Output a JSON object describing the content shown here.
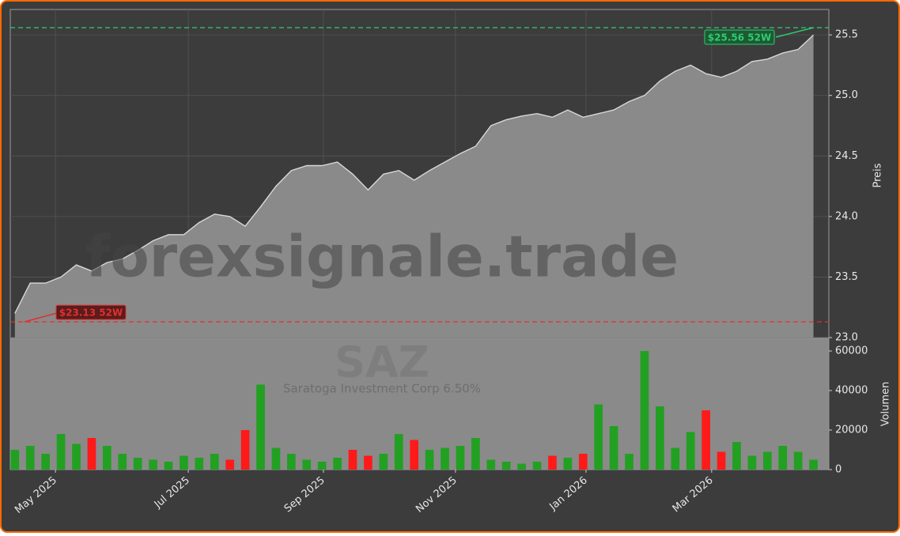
{
  "chart_data": {
    "type": "area",
    "watermark": "forexsignale.trade",
    "ticker": "SAZ",
    "subtitle": "Saratoga Investment Corp 6.50%",
    "y_label": "Preis",
    "y2_label": "Volumen",
    "line_color": "#d8d8d8",
    "fill_color": "#8a8a8a",
    "up_color": "#22a022",
    "down_color": "#ff1a1a",
    "grid": true,
    "xlim": [
      -0.3,
      53.0
    ],
    "xticks": [
      {
        "value": 2.64,
        "label": "May 2025"
      },
      {
        "value": 11.29,
        "label": "Jul 2025"
      },
      {
        "value": 20.09,
        "label": "Sep 2025"
      },
      {
        "value": 28.69,
        "label": "Nov 2025"
      },
      {
        "value": 37.19,
        "label": "Jan 2026"
      },
      {
        "value": 45.37,
        "label": "Mar 2026"
      }
    ],
    "ylim": [
      23.0,
      25.71
    ],
    "yticks": [
      {
        "value": 23.0,
        "label": "23.0"
      },
      23.5,
      {
        "value": 24.0,
        "label": "24.0"
      },
      24.5,
      {
        "value": 25.0,
        "label": "25.0"
      },
      25.5
    ],
    "close": [
      23.2,
      23.45,
      23.45,
      23.5,
      23.6,
      23.55,
      23.62,
      23.65,
      23.72,
      23.8,
      23.85,
      23.85,
      23.95,
      24.02,
      24.0,
      23.92,
      24.08,
      24.25,
      24.38,
      24.42,
      24.42,
      24.45,
      24.35,
      24.22,
      24.35,
      24.38,
      24.3,
      24.38,
      24.45,
      24.52,
      24.58,
      24.75,
      24.8,
      24.83,
      24.85,
      24.82,
      24.88,
      24.82,
      24.85,
      24.88,
      24.95,
      25.0,
      25.12,
      25.2,
      25.25,
      25.18,
      25.15,
      25.2,
      25.28,
      25.3,
      25.35,
      25.38,
      25.5
    ],
    "high_line": {
      "value": 25.56,
      "label": "$25.56 52W",
      "color": "#2ecc71"
    },
    "low_line": {
      "value": 23.13,
      "label": "$23.13 52W",
      "color": "#e03030"
    },
    "y2lim": [
      0,
      66400
    ],
    "y2ticks": [
      0,
      20000,
      40000,
      60000
    ],
    "volume": [
      10000,
      12000,
      8000,
      18000,
      13000,
      16000,
      12000,
      8000,
      6000,
      5000,
      4000,
      7000,
      6000,
      8000,
      5000,
      20000,
      43000,
      11000,
      8000,
      5000,
      4000,
      6000,
      10000,
      7000,
      8000,
      18000,
      15000,
      10000,
      11000,
      12000,
      16000,
      5000,
      4000,
      3000,
      4000,
      7000,
      6000,
      8000,
      33000,
      22000,
      8000,
      60000,
      32000,
      11000,
      19000,
      30000,
      9000,
      14000,
      7000,
      9000,
      12000,
      9000,
      5000
    ]
  }
}
